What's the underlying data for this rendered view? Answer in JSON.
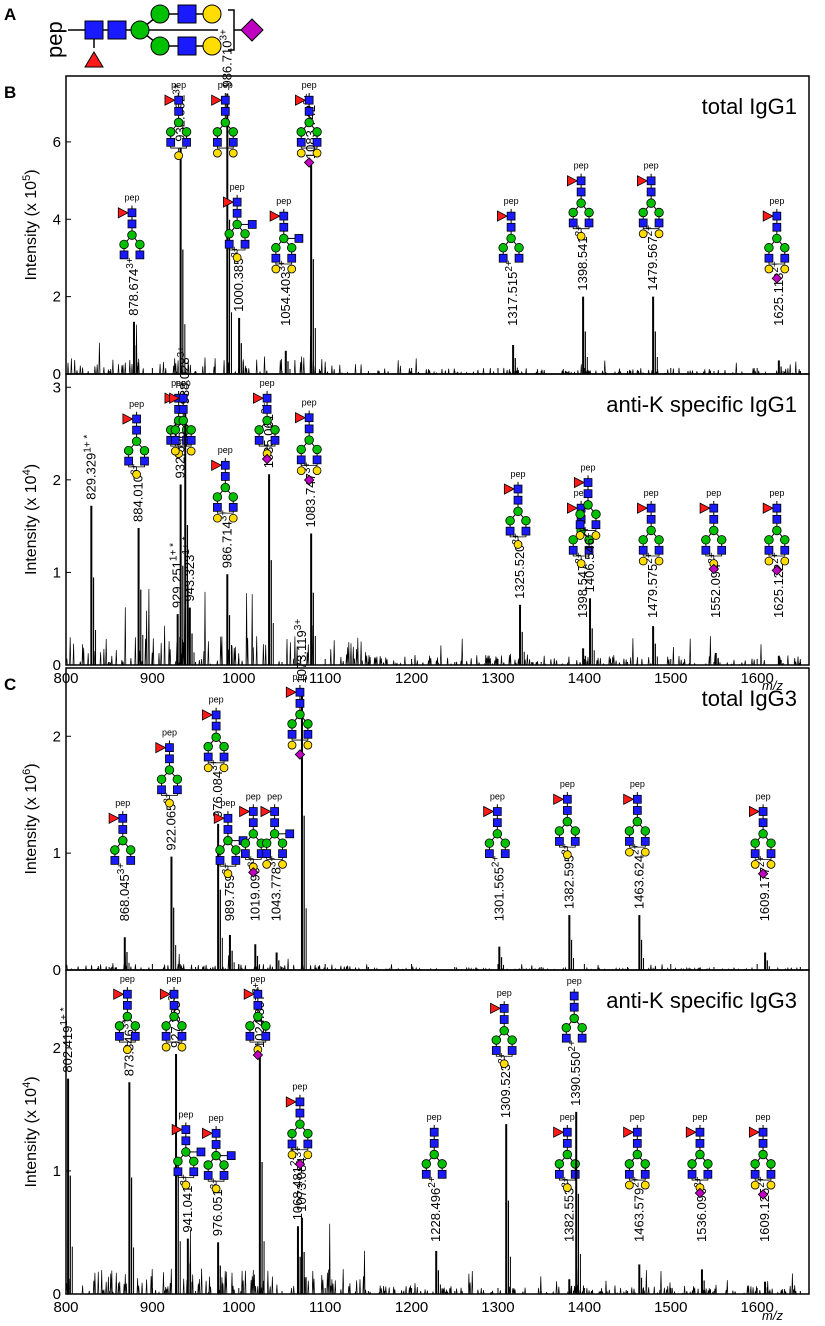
{
  "panel_letters": {
    "a": "A",
    "b": "B",
    "c": "C"
  },
  "legend_glycan": {
    "pep_label": "pep"
  },
  "structure_pep_label": "pep",
  "xlabel": "m/z",
  "colors": {
    "glcnac": "#1a1aff",
    "mannose": "#00c000",
    "galactose": "#ffdd00",
    "fucose": "#ff1a1a",
    "sialic": "#c000c0",
    "annotation_line": "#5aa0e6",
    "trace": "#000000"
  },
  "chart_data": [
    {
      "type": "line",
      "title": "total IgG1",
      "ylabel": "Intensity (x 10",
      "ylabel_exp": "5",
      "ylabel_close": ")",
      "xlim": [
        800,
        1660
      ],
      "ylim": [
        0,
        7.6
      ],
      "yticks": [
        "0",
        "2",
        "4",
        "6"
      ],
      "ytick_values": [
        0,
        2,
        4,
        6
      ],
      "xticks": [],
      "baseline_noise": 0.06,
      "peaks": [
        {
          "mz": 878.674,
          "value": 1.35,
          "label": "878.674",
          "charge": "3+",
          "glycan": "G0F"
        },
        {
          "mz": 932.692,
          "value": 5.85,
          "label": "932.692",
          "charge": "3+",
          "glycan": "G1F"
        },
        {
          "mz": 986.71,
          "value": 7.25,
          "label": "986.710",
          "charge": "3+",
          "glycan": "G2F"
        },
        {
          "mz": 1000.385,
          "value": 1.45,
          "label": "1000.385",
          "charge": "3+",
          "glycan": "G1FN"
        },
        {
          "mz": 1054.403,
          "value": 0.6,
          "label": "1054.403",
          "charge": "3+",
          "glycan": "G2FN"
        },
        {
          "mz": 1083.742,
          "value": 5.4,
          "label": "1083.742",
          "charge": "3+",
          "glycan": "G2FS"
        },
        {
          "mz": 1317.515,
          "value": 0.75,
          "label": "1317.515",
          "charge": "2+",
          "glycan": "G0F"
        },
        {
          "mz": 1398.541,
          "value": 2.0,
          "label": "1398.541",
          "charge": "2+",
          "glycan": "G1F"
        },
        {
          "mz": 1479.567,
          "value": 2.0,
          "label": "1479.567",
          "charge": "2+",
          "glycan": "G2F"
        },
        {
          "mz": 1625.113,
          "value": 0.35,
          "label": "1625.113",
          "charge": "2+",
          "glycan": "G2FS"
        }
      ]
    },
    {
      "type": "line",
      "title": "anti-K specific IgG1",
      "ylabel": "Intensity (x 10",
      "ylabel_exp": "4",
      "ylabel_close": ")",
      "xlim": [
        800,
        1660
      ],
      "ylim": [
        0,
        3.1
      ],
      "yticks": [
        "0",
        "1",
        "2",
        "3"
      ],
      "ytick_values": [
        0,
        1,
        2,
        3
      ],
      "xticks": [
        "800",
        "900",
        "1000",
        "1100",
        "1200",
        "1300",
        "1400",
        "1500",
        "1600"
      ],
      "xtick_values": [
        800,
        900,
        1000,
        1100,
        1200,
        1300,
        1400,
        1500,
        1600
      ],
      "baseline_noise": 0.1,
      "peaks": [
        {
          "mz": 829.329,
          "value": 1.72,
          "label": "829.329",
          "charge": "1+ *",
          "glycan": ""
        },
        {
          "mz": 884.01,
          "value": 1.48,
          "label": "884.010",
          "charge": "3+",
          "glycan": "G1F"
        },
        {
          "mz": 929.251,
          "value": 0.55,
          "label": "929.251",
          "charge": "1+ *",
          "glycan": ""
        },
        {
          "mz": 932.696,
          "value": 1.95,
          "label": "932.696",
          "charge": "3+",
          "glycan": "G1F"
        },
        {
          "mz": 938.028,
          "value": 2.75,
          "label": "938.028",
          "charge": "3+",
          "glycan": "G2F"
        },
        {
          "mz": 943.323,
          "value": 0.62,
          "label": "943.323",
          "charge": "1+ *",
          "glycan": ""
        },
        {
          "mz": 986.714,
          "value": 0.98,
          "label": "986.714",
          "charge": "3+",
          "glycan": "G2F"
        },
        {
          "mz": 1035.061,
          "value": 2.06,
          "label": "1035.061",
          "charge": "3+",
          "glycan": "G1FS"
        },
        {
          "mz": 1083.747,
          "value": 1.42,
          "label": "1083.747",
          "charge": "3+",
          "glycan": "G2FS"
        },
        {
          "mz": 1325.52,
          "value": 0.65,
          "label": "1325.520",
          "charge": "2+",
          "glycan": "G1F"
        },
        {
          "mz": 1398.547,
          "value": 0.18,
          "label": "1398.547",
          "charge": "2+",
          "glycan": "G1F"
        },
        {
          "mz": 1406.546,
          "value": 0.72,
          "label": "1406.546",
          "charge": "2+",
          "glycan": "G2F"
        },
        {
          "mz": 1479.575,
          "value": 0.42,
          "label": "1479.575",
          "charge": "2+",
          "glycan": "G2F"
        },
        {
          "mz": 1552.094,
          "value": 0.13,
          "label": "1552.094",
          "charge": "2+",
          "glycan": "G1FS"
        },
        {
          "mz": 1625.122,
          "value": 0.1,
          "label": "1625.122",
          "charge": "2+",
          "glycan": "G2FS"
        }
      ]
    },
    {
      "type": "line",
      "title": "total IgG3",
      "ylabel": "Intensity (x 10",
      "ylabel_exp": "6",
      "ylabel_close": ")",
      "xlim": [
        800,
        1660
      ],
      "ylim": [
        0,
        2.55
      ],
      "yticks": [
        "0",
        "1",
        "2"
      ],
      "ytick_values": [
        0,
        1,
        2
      ],
      "xticks": [],
      "baseline_noise": 0.02,
      "peaks": [
        {
          "mz": 868.045,
          "value": 0.28,
          "label": "868.045",
          "charge": "3+",
          "glycan": "G0F"
        },
        {
          "mz": 922.065,
          "value": 0.97,
          "label": "922.065",
          "charge": "3+",
          "glycan": "G1F"
        },
        {
          "mz": 976.084,
          "value": 1.25,
          "label": "976.084",
          "charge": "3+",
          "glycan": "G2F"
        },
        {
          "mz": 989.759,
          "value": 0.3,
          "label": "989.759",
          "charge": "3+",
          "glycan": "G1FN"
        },
        {
          "mz": 1019.099,
          "value": 0.22,
          "label": "1019.099",
          "charge": "3+",
          "glycan": "G1FS"
        },
        {
          "mz": 1043.778,
          "value": 0.15,
          "label": "1043.778",
          "charge": "3+",
          "glycan": "G2FN"
        },
        {
          "mz": 1073.119,
          "value": 2.4,
          "label": "1073.119",
          "charge": "3+",
          "glycan": "G2FS"
        },
        {
          "mz": 1301.565,
          "value": 0.2,
          "label": "1301.565",
          "charge": "2+",
          "glycan": "G0F"
        },
        {
          "mz": 1382.595,
          "value": 0.47,
          "label": "1382.595",
          "charge": "2+",
          "glycan": "G1F"
        },
        {
          "mz": 1463.624,
          "value": 0.47,
          "label": "1463.624",
          "charge": "2+",
          "glycan": "G2F"
        },
        {
          "mz": 1609.177,
          "value": 0.15,
          "label": "1609.177",
          "charge": "2+",
          "glycan": "G2FS"
        }
      ]
    },
    {
      "type": "line",
      "title": "anti-K specific IgG3",
      "ylabel": "Intensity (x 10",
      "ylabel_exp": "4",
      "ylabel_close": ")",
      "xlim": [
        800,
        1660
      ],
      "ylim": [
        0,
        2.6
      ],
      "yticks": [
        "0",
        "1",
        "2"
      ],
      "ytick_values": [
        0,
        1,
        2
      ],
      "xticks": [
        "800",
        "900",
        "1000",
        "1100",
        "1200",
        "1300",
        "1400",
        "1500",
        "1600"
      ],
      "xtick_values": [
        800,
        900,
        1000,
        1100,
        1200,
        1300,
        1400,
        1500,
        1600
      ],
      "baseline_noise": 0.08,
      "peaks": [
        {
          "mz": 802.419,
          "value": 1.75,
          "label": "802.419",
          "charge": "1+ *",
          "glycan": ""
        },
        {
          "mz": 873.346,
          "value": 1.72,
          "label": "873.346",
          "charge": "3+",
          "glycan": "G1F"
        },
        {
          "mz": 927.365,
          "value": 1.95,
          "label": "927.365",
          "charge": "3+",
          "glycan": "G2F"
        },
        {
          "mz": 941.041,
          "value": 0.45,
          "label": "941.041",
          "charge": "3+",
          "glycan": "G1FN"
        },
        {
          "mz": 976.051,
          "value": 0.42,
          "label": "976.051",
          "charge": "3+",
          "glycan": "G1FN"
        },
        {
          "mz": 1024.397,
          "value": 1.95,
          "label": "1024.397",
          "charge": "3+",
          "glycan": "G1FS"
        },
        {
          "mz": 1068.481,
          "value": 0.55,
          "label": "1068.481",
          "charge": "2+ *",
          "glycan": ""
        },
        {
          "mz": 1073.084,
          "value": 0.62,
          "label": "1073.084",
          "charge": "3+",
          "glycan": "G2FS"
        },
        {
          "mz": 1228.496,
          "value": 0.35,
          "label": "1228.496",
          "charge": "2+",
          "glycan": "G0"
        },
        {
          "mz": 1309.523,
          "value": 1.38,
          "label": "1309.523",
          "charge": "2+",
          "glycan": "G1F"
        },
        {
          "mz": 1382.553,
          "value": 0.12,
          "label": "1382.553",
          "charge": "2+",
          "glycan": "G1F"
        },
        {
          "mz": 1390.55,
          "value": 1.48,
          "label": "1390.550",
          "charge": "2+",
          "glycan": "G0"
        },
        {
          "mz": 1463.579,
          "value": 0.24,
          "label": "1463.579",
          "charge": "2+",
          "glycan": "G2F"
        },
        {
          "mz": 1536.096,
          "value": 0.2,
          "label": "1536.096",
          "charge": "2+",
          "glycan": "G1FS"
        },
        {
          "mz": 1609.125,
          "value": 0.1,
          "label": "1609.125",
          "charge": "2+",
          "glycan": "G2FS"
        }
      ]
    }
  ]
}
